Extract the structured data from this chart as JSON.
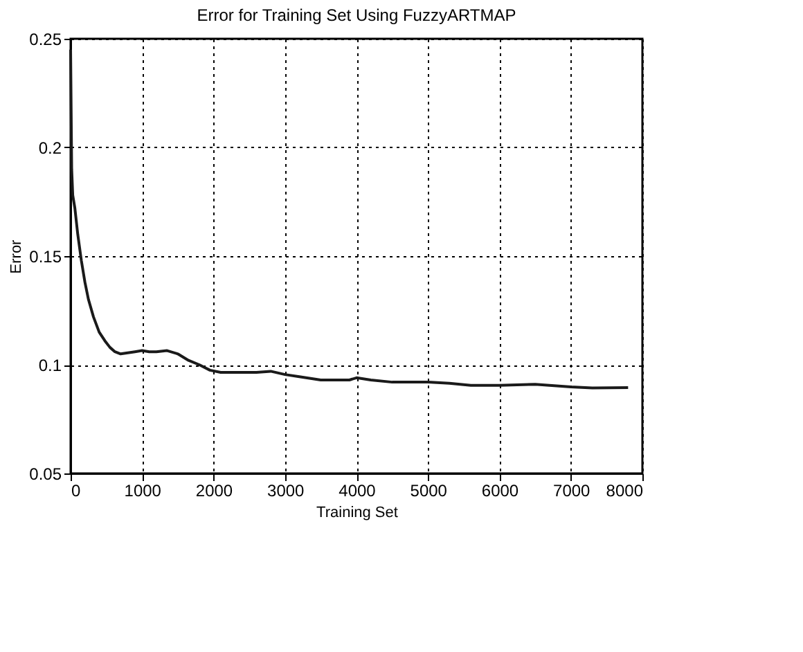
{
  "chart_data": {
    "type": "line",
    "title": "Error for Training Set Using FuzzyARTMAP",
    "xlabel": "Training Set",
    "ylabel": "Error",
    "x": [
      0,
      15,
      30,
      60,
      100,
      150,
      200,
      250,
      320,
      400,
      480,
      550,
      620,
      700,
      800,
      900,
      1000,
      1100,
      1200,
      1350,
      1500,
      1650,
      1800,
      1950,
      2100,
      2300,
      2600,
      2800,
      3000,
      3200,
      3500,
      3900,
      4000,
      4200,
      4500,
      5000,
      5300,
      5600,
      6000,
      6500,
      7000,
      7300,
      7800
    ],
    "series": [
      {
        "color": "#1a1a1a",
        "values": [
          0.245,
          0.19,
          0.178,
          0.172,
          0.16,
          0.148,
          0.138,
          0.13,
          0.122,
          0.115,
          0.111,
          0.108,
          0.106,
          0.105,
          0.1055,
          0.106,
          0.1065,
          0.106,
          0.106,
          0.1065,
          0.105,
          0.102,
          0.1,
          0.0975,
          0.0965,
          0.0965,
          0.0965,
          0.097,
          0.0955,
          0.0945,
          0.093,
          0.093,
          0.094,
          0.093,
          0.092,
          0.092,
          0.0915,
          0.0905,
          0.0905,
          0.091,
          0.0898,
          0.0893,
          0.0895
        ]
      }
    ],
    "xlim": [
      0,
      8000
    ],
    "xticks": [
      0,
      1000,
      2000,
      3000,
      4000,
      5000,
      6000,
      7000,
      8000
    ],
    "ylim": [
      0.05,
      0.25
    ],
    "yticks": [
      0.05,
      0.1,
      0.15,
      0.2,
      0.25
    ],
    "grid": true,
    "line_style": "solid"
  }
}
